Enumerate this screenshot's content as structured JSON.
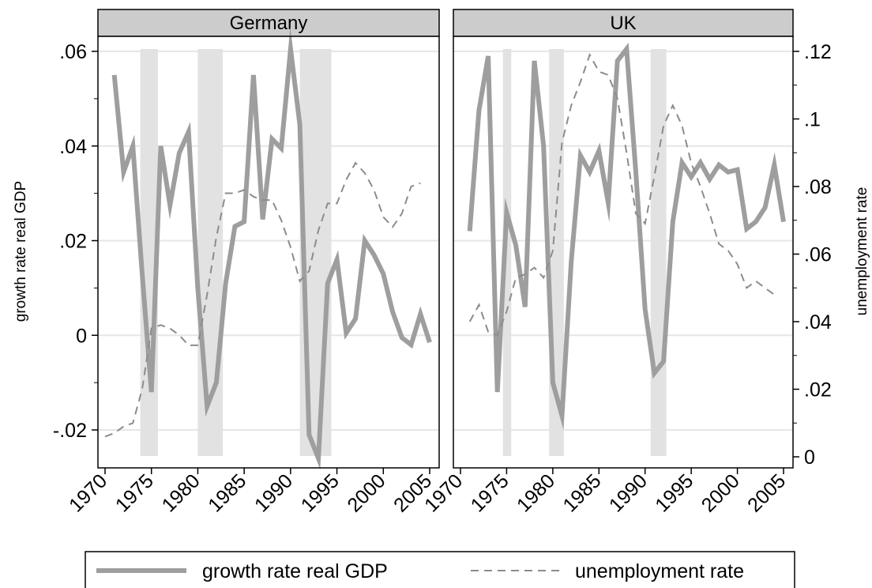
{
  "chart_data": {
    "type": "line",
    "colors": {
      "gdp": "#9e9e9e",
      "unemployment": "#8c8c8c",
      "recession": "#e2e2e2",
      "header": "#cccccc",
      "grid": "#e6e6e6"
    },
    "ylabel_left": "growth rate real GDP",
    "ylabel_right": "unemployment rate",
    "ylim_left": [
      -0.026,
      0.062
    ],
    "ylim_right": [
      -0.002,
      0.124
    ],
    "yticks_left": [
      {
        "value": -0.02,
        "label": "-.02"
      },
      {
        "value": 0,
        "label": "0"
      },
      {
        "value": 0.02,
        "label": ".02"
      },
      {
        "value": 0.04,
        "label": ".04"
      },
      {
        "value": 0.06,
        "label": ".06"
      }
    ],
    "yticks_right": [
      {
        "value": 0,
        "label": "0"
      },
      {
        "value": 0.02,
        "label": ".02"
      },
      {
        "value": 0.04,
        "label": ".04"
      },
      {
        "value": 0.06,
        "label": ".06"
      },
      {
        "value": 0.08,
        "label": ".08"
      },
      {
        "value": 0.1,
        "label": ".1"
      },
      {
        "value": 0.12,
        "label": ".12"
      }
    ],
    "xlim": [
      1970,
      2006
    ],
    "xticks": [
      "1970",
      "1975",
      "1980",
      "1985",
      "1990",
      "1995",
      "2000",
      "2005"
    ],
    "legend": {
      "position": "bottom",
      "entries": [
        "growth rate real GDP",
        "unemployment rate"
      ]
    },
    "panels": [
      {
        "title": "Germany",
        "recessions": [
          [
            1973.8,
            1975.7
          ],
          [
            1980.0,
            1982.7
          ],
          [
            1991.0,
            1994.4
          ]
        ],
        "series": [
          {
            "name": "growth rate real GDP",
            "x": [
              1971,
              1972,
              1973,
              1974,
              1975,
              1976,
              1977,
              1978,
              1979,
              1980,
              1981,
              1982,
              1983,
              1984,
              1985,
              1986,
              1987,
              1988,
              1989,
              1990,
              1991,
              1992,
              1993,
              1994,
              1995,
              1996,
              1997,
              1998,
              1999,
              2000,
              2001,
              2002,
              2003,
              2004,
              2005
            ],
            "y": [
              0.055,
              0.0345,
              0.04,
              0.013,
              -0.012,
              0.04,
              0.0275,
              0.0385,
              0.043,
              0.01,
              -0.015,
              -0.01,
              0.011,
              0.023,
              0.024,
              0.055,
              0.0245,
              0.0415,
              0.0395,
              0.0605,
              0.0445,
              -0.021,
              -0.026,
              0.011,
              0.016,
              0.0005,
              0.0035,
              0.02,
              0.017,
              0.013,
              0.005,
              -0.0005,
              -0.002,
              0.0045,
              -0.0015
            ]
          },
          {
            "name": "unemployment rate",
            "x": [
              1970,
              1971,
              1972,
              1973,
              1974,
              1975,
              1976,
              1977,
              1978,
              1979,
              1980,
              1981,
              1982,
              1983,
              1984,
              1985,
              1986,
              1987,
              1988,
              1989,
              1990,
              1991,
              1992,
              1993,
              1994,
              1995,
              1996,
              1997,
              1998,
              1999,
              2000,
              2001,
              2002,
              2003,
              2004
            ],
            "y": [
              0.006,
              0.007,
              0.009,
              0.01,
              0.02,
              0.038,
              0.039,
              0.038,
              0.036,
              0.033,
              0.033,
              0.048,
              0.065,
              0.078,
              0.078,
              0.079,
              0.077,
              0.076,
              0.076,
              0.07,
              0.062,
              0.052,
              0.055,
              0.067,
              0.075,
              0.075,
              0.082,
              0.087,
              0.084,
              0.079,
              0.071,
              0.068,
              0.072,
              0.08,
              0.081
            ]
          }
        ]
      },
      {
        "title": "UK",
        "recessions": [
          [
            1974.6,
            1975.5
          ],
          [
            1979.6,
            1981.2
          ],
          [
            1990.6,
            1992.3
          ]
        ],
        "series": [
          {
            "name": "growth rate real GDP",
            "x": [
              1971,
              1972,
              1973,
              1974,
              1975,
              1976,
              1977,
              1978,
              1979,
              1980,
              1981,
              1982,
              1983,
              1984,
              1985,
              1986,
              1987,
              1988,
              1989,
              1990,
              1991,
              1992,
              1993,
              1994,
              1995,
              1996,
              1997,
              1998,
              1999,
              2000,
              2001,
              2002,
              2003,
              2004,
              2005
            ],
            "y": [
              0.022,
              0.0475,
              0.059,
              -0.012,
              0.026,
              0.019,
              0.006,
              0.058,
              0.04,
              -0.01,
              -0.017,
              0.0155,
              0.038,
              0.0345,
              0.039,
              0.028,
              0.058,
              0.0605,
              0.0345,
              0.0055,
              -0.008,
              -0.0055,
              0.024,
              0.0365,
              0.0335,
              0.0365,
              0.033,
              0.036,
              0.0345,
              0.035,
              0.0225,
              0.024,
              0.027,
              0.036,
              0.024
            ]
          },
          {
            "name": "unemployment rate",
            "x": [
              1971,
              1972,
              1973,
              1974,
              1975,
              1976,
              1977,
              1978,
              1979,
              1980,
              1981,
              1982,
              1983,
              1984,
              1985,
              1986,
              1987,
              1988,
              1989,
              1990,
              1991,
              1992,
              1993,
              1994,
              1995,
              1996,
              1997,
              1998,
              1999,
              2000,
              2001,
              2002,
              2003,
              2004
            ],
            "y": [
              0.04,
              0.045,
              0.037,
              0.036,
              0.043,
              0.053,
              0.054,
              0.056,
              0.053,
              0.061,
              0.093,
              0.104,
              0.111,
              0.119,
              0.114,
              0.113,
              0.106,
              0.09,
              0.072,
              0.069,
              0.083,
              0.098,
              0.104,
              0.098,
              0.087,
              0.08,
              0.072,
              0.063,
              0.061,
              0.057,
              0.05,
              0.052,
              0.05,
              0.048
            ]
          }
        ]
      }
    ]
  }
}
